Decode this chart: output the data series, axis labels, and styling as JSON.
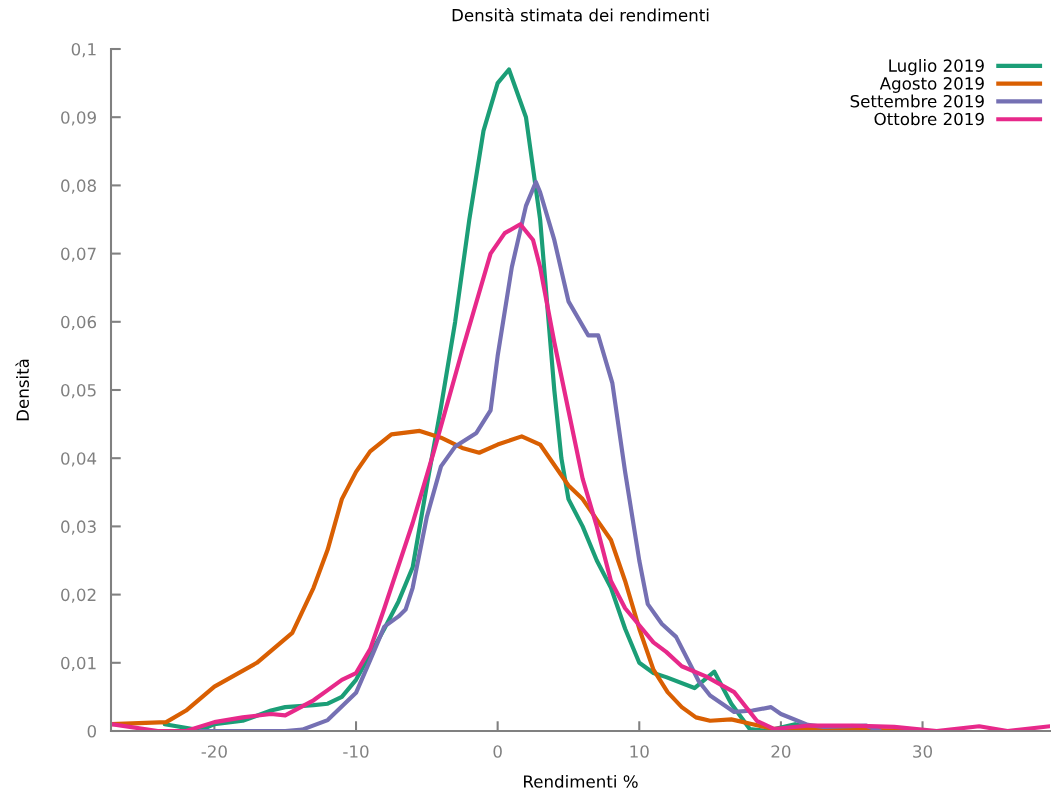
{
  "chart_data": {
    "type": "line",
    "title": "Densità stimata dei rendimenti",
    "xlabel": "Rendimenti %",
    "ylabel": "Densità",
    "xlim": [
      -27.3,
      39
    ],
    "ylim": [
      0,
      0.1
    ],
    "xticks": [
      -20,
      -10,
      0,
      10,
      20,
      30
    ],
    "yticks": [
      {
        "value": 0,
        "label": "0"
      },
      {
        "value": 0.01,
        "label": "0,01"
      },
      {
        "value": 0.02,
        "label": "0,02"
      },
      {
        "value": 0.03,
        "label": "0,03"
      },
      {
        "value": 0.04,
        "label": "0,04"
      },
      {
        "value": 0.05,
        "label": "0,05"
      },
      {
        "value": 0.06,
        "label": "0,06"
      },
      {
        "value": 0.07,
        "label": "0,07"
      },
      {
        "value": 0.08,
        "label": "0,08"
      },
      {
        "value": 0.09,
        "label": "0,09"
      },
      {
        "value": 0.1,
        "label": "0,1"
      }
    ],
    "grid": false,
    "legend": "top right",
    "marker": "none",
    "line_style": "solid",
    "series": [
      {
        "name": "Luglio 2019",
        "color": "#1b9e77",
        "x": [
          -23.5,
          -21,
          -20,
          -18,
          -16,
          -15,
          -13,
          -12,
          -11,
          -10,
          -8,
          -7,
          -6,
          -5,
          -4,
          -3,
          -2,
          -1,
          0,
          0.8,
          2,
          3,
          4,
          4.5,
          5,
          6,
          7,
          8,
          9,
          10,
          11,
          11.9,
          13.9,
          15.3,
          16.5,
          17.8,
          19,
          20,
          21,
          23
        ],
        "values": [
          0.001,
          0.0001,
          0.001,
          0.0015,
          0.003,
          0.0035,
          0.0038,
          0.004,
          0.005,
          0.0075,
          0.015,
          0.019,
          0.024,
          0.036,
          0.0475,
          0.06,
          0.075,
          0.088,
          0.095,
          0.097,
          0.09,
          0.075,
          0.05,
          0.04,
          0.034,
          0.03,
          0.025,
          0.021,
          0.015,
          0.01,
          0.0085,
          0.0079,
          0.0063,
          0.0087,
          0.004,
          0.0003,
          0.0,
          0.0005,
          0.001,
          0.0
        ]
      },
      {
        "name": "Agosto 2019",
        "color": "#d95f02",
        "x": [
          -27.3,
          -23.4,
          -22,
          -20,
          -17,
          -14.5,
          -13,
          -12,
          -11,
          -10,
          -9,
          -7.5,
          -5.5,
          -4,
          -2.5,
          -1.3,
          0,
          1.7,
          3,
          4,
          5,
          6,
          7,
          8,
          9,
          10,
          11,
          12,
          13,
          14,
          15,
          16.5,
          18,
          19.5,
          25,
          30
        ],
        "values": [
          0.001,
          0.0013,
          0.003,
          0.0065,
          0.01,
          0.0144,
          0.021,
          0.0266,
          0.034,
          0.038,
          0.041,
          0.0435,
          0.044,
          0.043,
          0.0415,
          0.0408,
          0.042,
          0.0432,
          0.042,
          0.039,
          0.036,
          0.034,
          0.031,
          0.028,
          0.022,
          0.015,
          0.009,
          0.0057,
          0.0035,
          0.002,
          0.0015,
          0.0017,
          0.001,
          0.0003,
          0.0002,
          0.0
        ]
      },
      {
        "name": "Settembre 2019",
        "color": "#7570b3",
        "x": [
          -21,
          -15,
          -13.8,
          -12,
          -10,
          -9,
          -8,
          -7,
          -6.5,
          -6,
          -5,
          -4,
          -3,
          -1.5,
          -0.5,
          0,
          1,
          2,
          2.7,
          3,
          4,
          5,
          6.4,
          7.1,
          8.1,
          9,
          10,
          10.6,
          11.6,
          12.6,
          14.2,
          15,
          16.7,
          18,
          19.3,
          20,
          21.9,
          23,
          26,
          27
        ],
        "values": [
          0.0,
          0.0,
          0.0002,
          0.0016,
          0.0056,
          0.0104,
          0.0153,
          0.0168,
          0.0178,
          0.021,
          0.0314,
          0.0388,
          0.0417,
          0.0437,
          0.047,
          0.055,
          0.068,
          0.077,
          0.0805,
          0.079,
          0.072,
          0.063,
          0.058,
          0.058,
          0.051,
          0.038,
          0.025,
          0.0186,
          0.0157,
          0.0138,
          0.0073,
          0.0052,
          0.0028,
          0.003,
          0.0035,
          0.0025,
          0.0009,
          0.0006,
          0.0008,
          0.0
        ]
      },
      {
        "name": "Ottobre 2019",
        "color": "#e7298a",
        "x": [
          -27.3,
          -24,
          -22,
          -20,
          -18,
          -16,
          -15,
          -13,
          -12,
          -11,
          -10,
          -9,
          -8,
          -6,
          -4.5,
          -2.5,
          -0.5,
          0.5,
          1.6,
          2.5,
          3,
          4,
          5,
          6,
          7,
          8,
          9,
          10,
          11,
          11.9,
          13,
          14.7,
          16.7,
          18.3,
          19.5,
          22,
          25,
          28,
          31,
          34,
          36,
          39
        ],
        "values": [
          0.001,
          0.0,
          0.0,
          0.0013,
          0.002,
          0.0025,
          0.0023,
          0.0045,
          0.006,
          0.0075,
          0.0085,
          0.012,
          0.018,
          0.0305,
          0.041,
          0.0558,
          0.07,
          0.073,
          0.0743,
          0.072,
          0.068,
          0.057,
          0.047,
          0.037,
          0.03,
          0.022,
          0.018,
          0.0155,
          0.013,
          0.0116,
          0.0095,
          0.008,
          0.0057,
          0.0015,
          0.0003,
          0.0008,
          0.0008,
          0.0006,
          0.0,
          0.0007,
          0.0,
          0.0007
        ]
      }
    ]
  }
}
